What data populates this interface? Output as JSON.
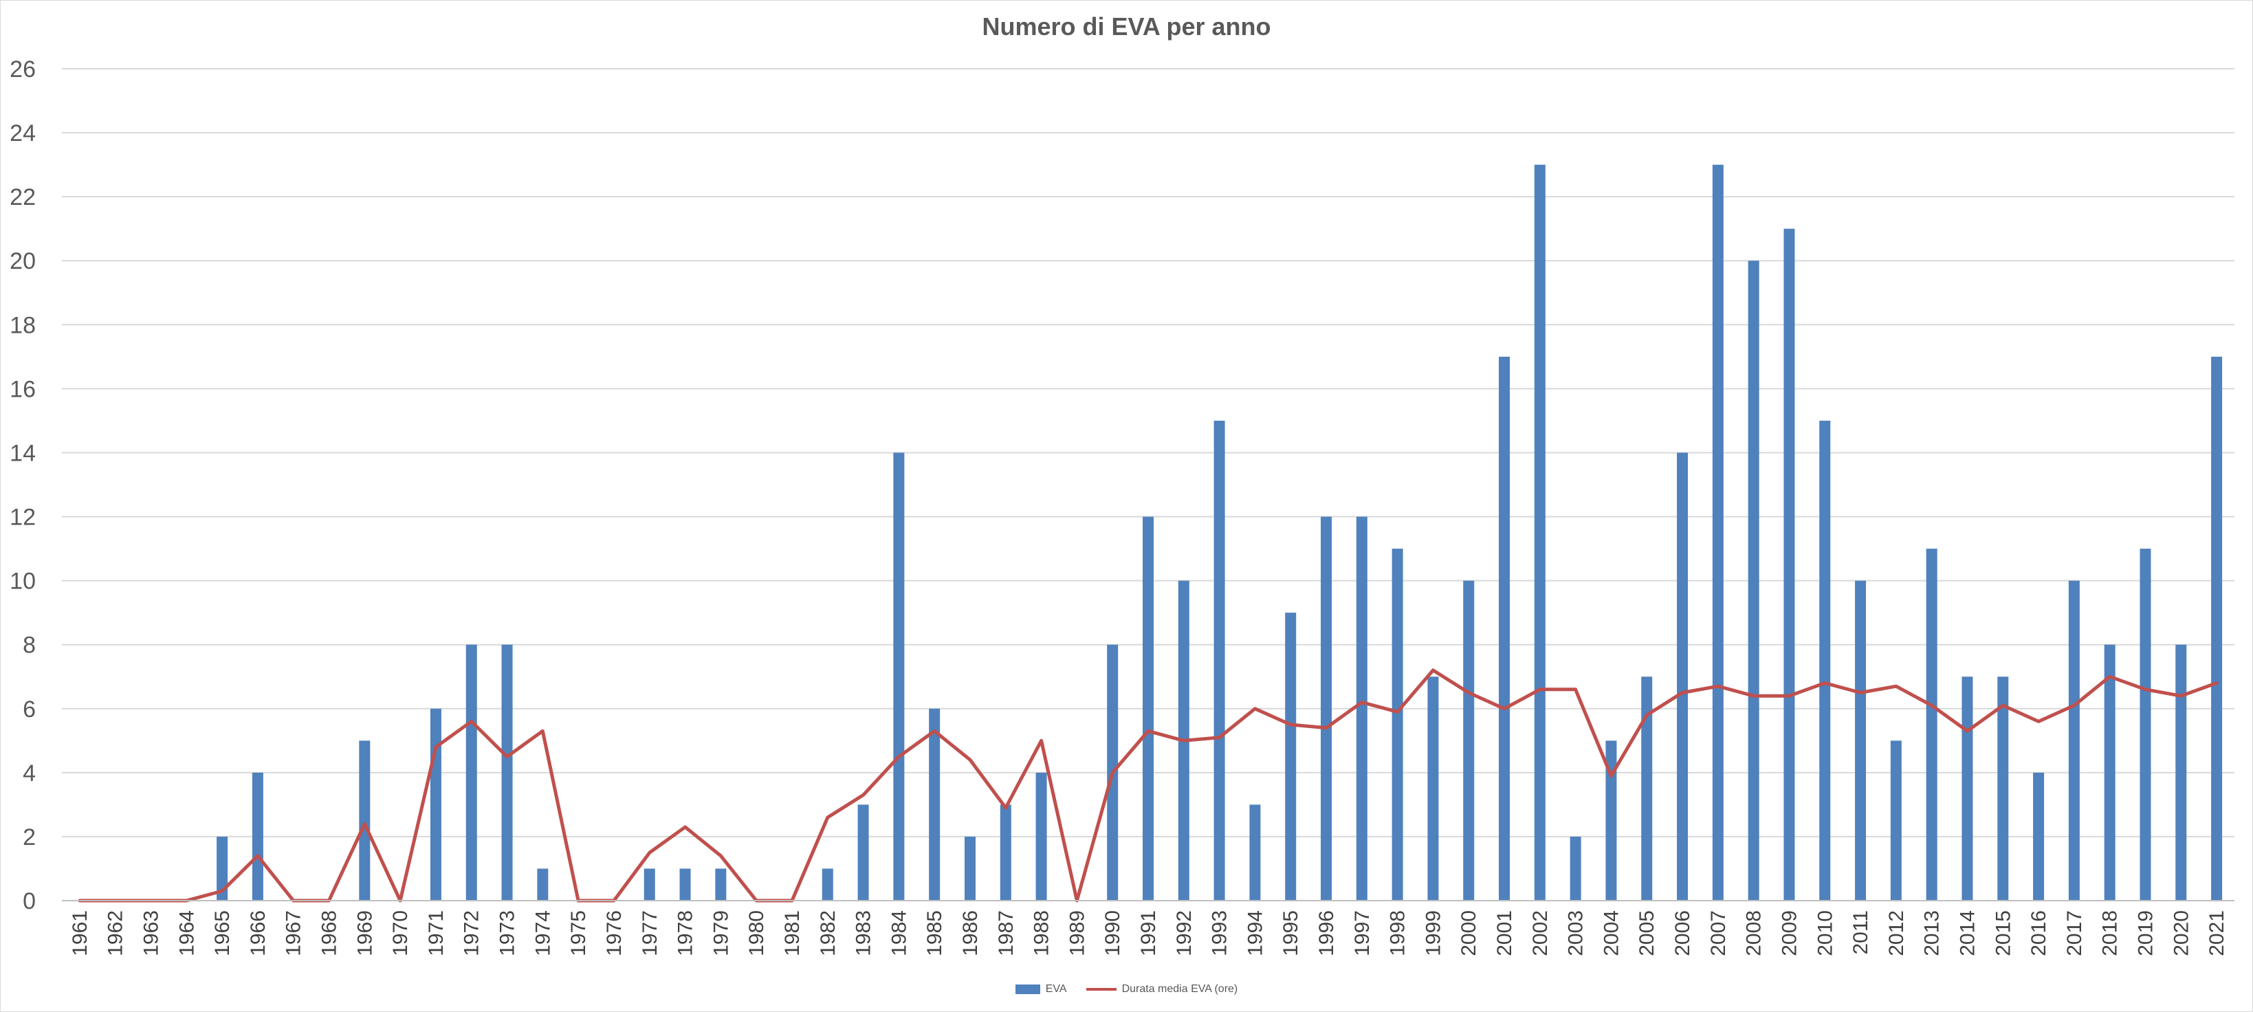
{
  "chart_data": {
    "type": "bar",
    "title": "Numero di EVA per anno",
    "xlabel": "",
    "ylabel": "",
    "ylim": [
      0,
      26
    ],
    "yticks": [
      0,
      2,
      4,
      6,
      8,
      10,
      12,
      14,
      16,
      18,
      20,
      22,
      24,
      26
    ],
    "grid": true,
    "legend_position": "bottom",
    "categories": [
      "1961",
      "1962",
      "1963",
      "1964",
      "1965",
      "1966",
      "1967",
      "1968",
      "1969",
      "1970",
      "1971",
      "1972",
      "1973",
      "1974",
      "1975",
      "1976",
      "1977",
      "1978",
      "1979",
      "1980",
      "1981",
      "1982",
      "1983",
      "1984",
      "1985",
      "1986",
      "1987",
      "1988",
      "1989",
      "1990",
      "1991",
      "1992",
      "1993",
      "1994",
      "1995",
      "1996",
      "1997",
      "1998",
      "1999",
      "2000",
      "2001",
      "2002",
      "2003",
      "2004",
      "2005",
      "2006",
      "2007",
      "2008",
      "2009",
      "2010",
      "2011",
      "2012",
      "2013",
      "2014",
      "2015",
      "2016",
      "2017",
      "2018",
      "2019",
      "2020",
      "2021"
    ],
    "series": [
      {
        "name": "EVA",
        "type": "bar",
        "color": "#4f81bd",
        "values": [
          0,
          0,
          0,
          0,
          2,
          4,
          0,
          0,
          5,
          0,
          6,
          8,
          8,
          1,
          0,
          0,
          1,
          1,
          1,
          0,
          0,
          1,
          3,
          14,
          6,
          2,
          3,
          4,
          0,
          8,
          12,
          10,
          15,
          3,
          9,
          12,
          12,
          11,
          7,
          10,
          17,
          23,
          2,
          5,
          7,
          14,
          23,
          20,
          21,
          15,
          10,
          5,
          11,
          7,
          7,
          4,
          10,
          8,
          11,
          8,
          17
        ]
      },
      {
        "name": "Durata media EVA (ore)",
        "type": "line",
        "color": "#c0504d",
        "values": [
          0,
          0,
          0,
          0,
          0.3,
          1.4,
          0,
          0,
          2.4,
          0,
          4.8,
          5.6,
          4.5,
          5.3,
          0,
          0,
          1.5,
          2.3,
          1.4,
          0,
          0,
          2.6,
          3.3,
          4.5,
          5.3,
          4.4,
          2.9,
          5.0,
          0,
          4.0,
          5.3,
          5.0,
          5.1,
          6.0,
          5.5,
          5.4,
          6.2,
          5.9,
          7.2,
          6.5,
          6.0,
          6.6,
          6.6,
          3.9,
          5.8,
          6.5,
          6.7,
          6.4,
          6.4,
          6.8,
          6.5,
          6.7,
          6.1,
          5.3,
          6.1,
          5.6,
          6.1,
          7.0,
          6.6,
          6.4,
          6.8
        ]
      }
    ]
  }
}
